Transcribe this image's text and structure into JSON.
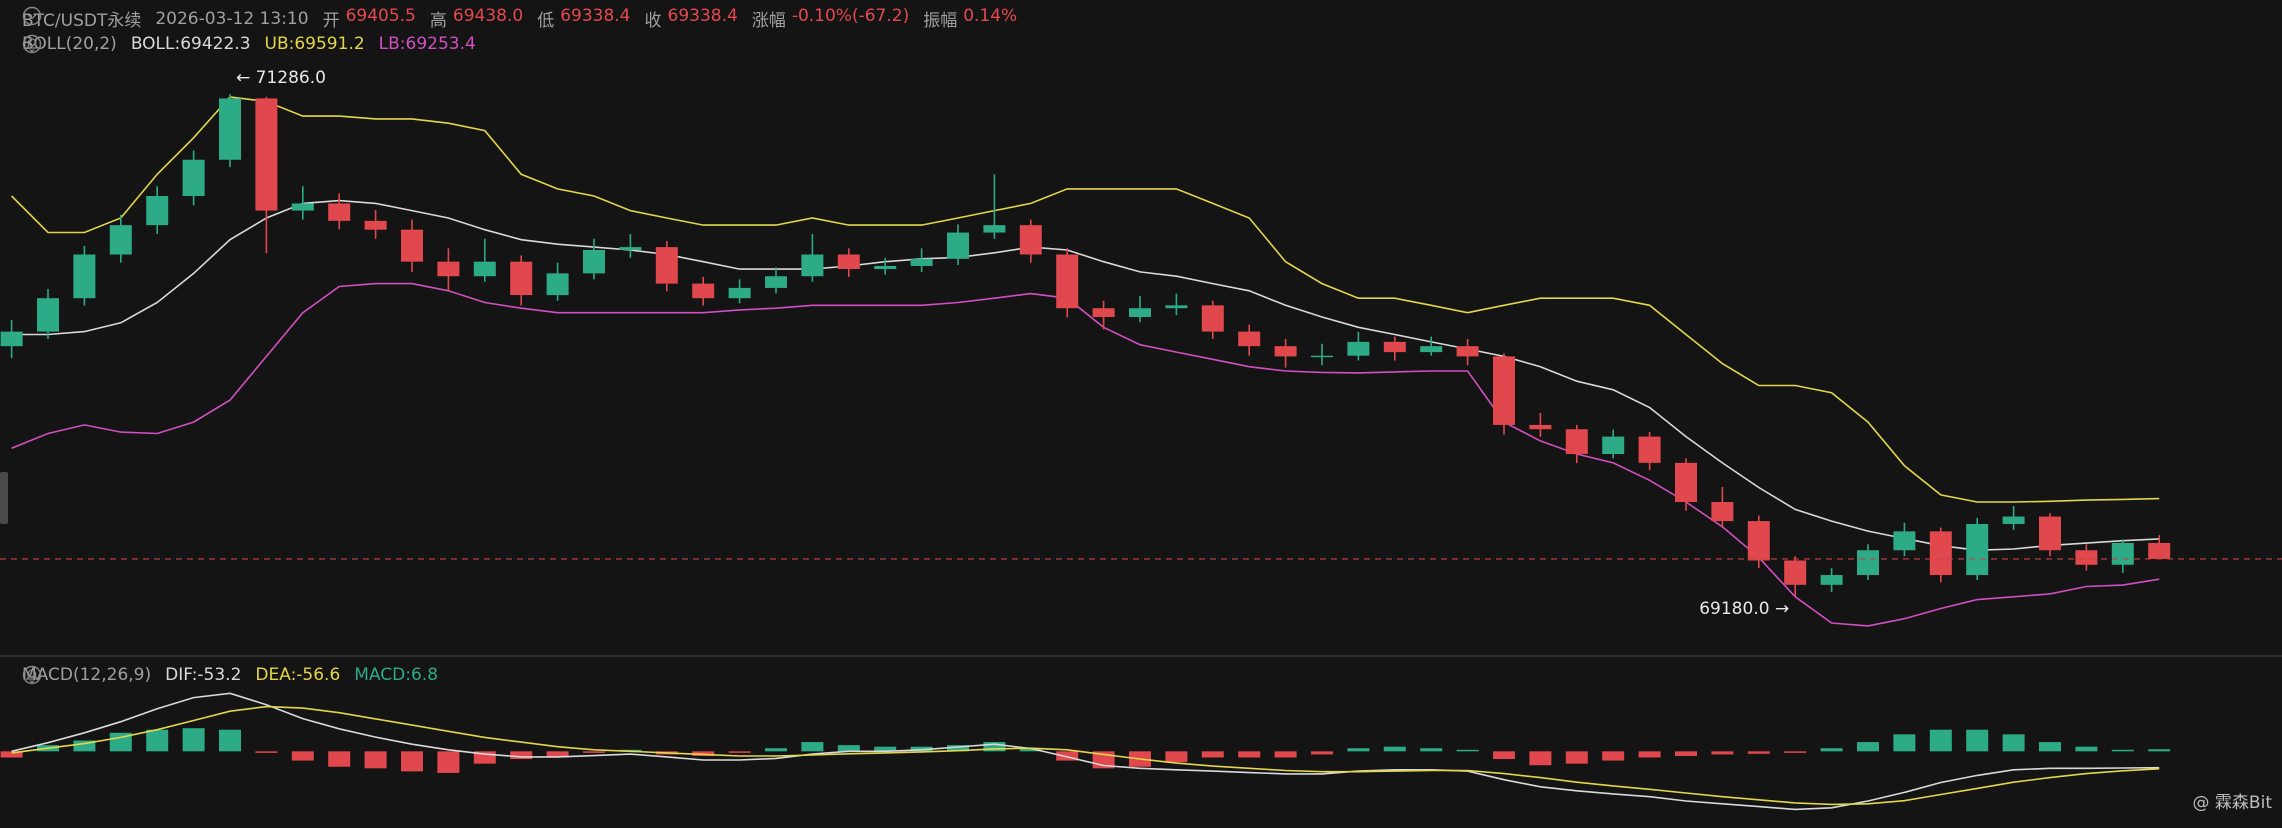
{
  "header": {
    "symbol": "BTC/USDT永续",
    "time": "2026-03-12 13:10",
    "fields": [
      {
        "label": "开",
        "value": "69405.5"
      },
      {
        "label": "高",
        "value": "69438.0"
      },
      {
        "label": "低",
        "value": "69338.4"
      },
      {
        "label": "收",
        "value": "69338.4"
      },
      {
        "label": "涨幅",
        "value": "-0.10%(-67.2)"
      },
      {
        "label": "振幅",
        "value": "0.14%"
      }
    ]
  },
  "watermark": "@ 霖森Bit",
  "chart_data": [
    {
      "type": "candlestick",
      "indicator": "BOLL(20,2)",
      "up_color": "#2dab86",
      "down_color": "#e0484d",
      "ylim": [
        68936,
        71408
      ],
      "open": [
        70230,
        70291,
        70431,
        70614,
        70737,
        70859,
        71011,
        71268,
        70798,
        70828,
        70755,
        70718,
        70584,
        70523,
        70584,
        70444,
        70535,
        70633,
        70645,
        70492,
        70431,
        70474,
        70523,
        70614,
        70553,
        70566,
        70596,
        70706,
        70737,
        70614,
        70389,
        70352,
        70389,
        70401,
        70291,
        70230,
        70187,
        70190,
        70248,
        70205,
        70230,
        70187,
        69900,
        69882,
        69778,
        69851,
        69741,
        69577,
        69497,
        69332,
        69230,
        69271,
        69375,
        69454,
        69271,
        69485,
        69516,
        69375,
        69314,
        69405.5
      ],
      "high": [
        70340,
        70470,
        70650,
        70780,
        70900,
        71050,
        71286,
        71275,
        70900,
        70870,
        70800,
        70760,
        70640,
        70680,
        70610,
        70580,
        70680,
        70700,
        70670,
        70520,
        70510,
        70560,
        70700,
        70640,
        70600,
        70640,
        70740,
        70950,
        70760,
        70640,
        70420,
        70440,
        70450,
        70420,
        70320,
        70260,
        70240,
        70290,
        70270,
        70270,
        70260,
        70200,
        69950,
        69900,
        69880,
        69870,
        69760,
        69640,
        69520,
        69350,
        69300,
        69400,
        69490,
        69470,
        69510,
        69560,
        69530,
        69400,
        69420,
        69438.0
      ],
      "low": [
        70180,
        70260,
        70400,
        70580,
        70700,
        70820,
        70980,
        70620,
        70760,
        70720,
        70680,
        70540,
        70460,
        70500,
        70400,
        70420,
        70510,
        70600,
        70460,
        70400,
        70410,
        70450,
        70500,
        70520,
        70530,
        70540,
        70570,
        70680,
        70580,
        70350,
        70300,
        70330,
        70360,
        70260,
        70190,
        70140,
        70150,
        70170,
        70170,
        70190,
        70150,
        69860,
        69850,
        69740,
        69760,
        69710,
        69540,
        69470,
        69300,
        69180,
        69200,
        69250,
        69350,
        69240,
        69250,
        69460,
        69350,
        69290,
        69280,
        69338.4
      ],
      "close": [
        70291,
        70431,
        70614,
        70737,
        70859,
        71011,
        71268,
        70798,
        70828,
        70755,
        70718,
        70584,
        70523,
        70584,
        70444,
        70535,
        70633,
        70645,
        70492,
        70431,
        70474,
        70523,
        70614,
        70553,
        70566,
        70596,
        70706,
        70737,
        70614,
        70389,
        70352,
        70389,
        70401,
        70291,
        70230,
        70187,
        70190,
        70248,
        70205,
        70230,
        70187,
        69900,
        69882,
        69778,
        69851,
        69741,
        69577,
        69497,
        69332,
        69230,
        69271,
        69375,
        69454,
        69271,
        69485,
        69516,
        69375,
        69314,
        69405.5,
        69338.4
      ],
      "series": [
        {
          "name": "BOLL:69422.3",
          "color": "#d9d9d9",
          "values": [
            70279,
            70279,
            70291,
            70328,
            70413,
            70535,
            70676,
            70767,
            70828,
            70840,
            70828,
            70798,
            70767,
            70718,
            70676,
            70657,
            70645,
            70633,
            70614,
            70584,
            70553,
            70553,
            70553,
            70566,
            70584,
            70596,
            70602,
            70621,
            70645,
            70633,
            70584,
            70541,
            70523,
            70492,
            70462,
            70401,
            70352,
            70309,
            70279,
            70248,
            70218,
            70187,
            70144,
            70083,
            70047,
            69973,
            69851,
            69741,
            69638,
            69546,
            69497,
            69455,
            69424,
            69394,
            69375,
            69380,
            69395,
            69405,
            69415,
            69422.3
          ]
        },
        {
          "name": "UB:69591.2",
          "color": "#e3d64a",
          "values": [
            70859,
            70706,
            70706,
            70767,
            70950,
            71103,
            71274,
            71255,
            71194,
            71194,
            71182,
            71182,
            71164,
            71133,
            70950,
            70889,
            70859,
            70798,
            70767,
            70737,
            70737,
            70737,
            70767,
            70737,
            70737,
            70737,
            70767,
            70798,
            70828,
            70889,
            70889,
            70889,
            70889,
            70828,
            70767,
            70584,
            70492,
            70431,
            70431,
            70401,
            70370,
            70401,
            70431,
            70431,
            70431,
            70401,
            70279,
            70157,
            70065,
            70065,
            70035,
            69912,
            69729,
            69607,
            69577,
            69577,
            69580,
            69585,
            69588,
            69591.2
          ]
        },
        {
          "name": "LB:69253.4",
          "color": "#d24fc1",
          "values": [
            69802,
            69864,
            69900,
            69870,
            69864,
            69912,
            70004,
            70187,
            70370,
            70480,
            70492,
            70492,
            70462,
            70413,
            70389,
            70370,
            70370,
            70370,
            70370,
            70370,
            70382,
            70389,
            70401,
            70401,
            70401,
            70401,
            70413,
            70431,
            70450,
            70431,
            70309,
            70236,
            70205,
            70175,
            70144,
            70126,
            70120,
            70118,
            70122,
            70126,
            70126,
            69912,
            69833,
            69778,
            69741,
            69668,
            69577,
            69473,
            69345,
            69180,
            69070,
            69058,
            69088,
            69131,
            69168,
            69180,
            69192,
            69223,
            69229,
            69253.4
          ]
        }
      ],
      "annotations": [
        "← 71286.0",
        "69180.0 →"
      ]
    },
    {
      "type": "macd",
      "indicator": "MACD(12,26,9)",
      "ylim": [
        -216,
        257
      ],
      "histogram": {
        "name": "MACD:6.8",
        "color": "#2dab86",
        "down_color": "#e0484d",
        "values": [
          -20,
          20,
          35,
          60,
          70,
          75,
          70,
          -5,
          -30,
          -50,
          -55,
          -65,
          -70,
          -40,
          -25,
          -20,
          -5,
          5,
          -10,
          -15,
          -5,
          10,
          30,
          20,
          15,
          15,
          20,
          30,
          10,
          -30,
          -55,
          -50,
          -35,
          -20,
          -20,
          -20,
          -10,
          10,
          15,
          10,
          5,
          -25,
          -45,
          -40,
          -30,
          -20,
          -15,
          -10,
          -8,
          -5,
          10,
          30,
          55,
          70,
          70,
          55,
          30,
          15,
          5,
          6.8
        ]
      },
      "series": [
        {
          "name": "DIF:-53.2",
          "color": "#d9d9d9",
          "values": [
            0,
            28,
            60,
            96,
            138,
            174,
            188,
            151,
            106,
            73,
            46,
            23,
            5,
            -9,
            -18,
            -18,
            -14,
            -9,
            -18,
            -28,
            -28,
            -23,
            -9,
            0,
            0,
            5,
            14,
            23,
            9,
            -18,
            -46,
            -55,
            -60,
            -64,
            -69,
            -73,
            -73,
            -64,
            -60,
            -60,
            -64,
            -92,
            -115,
            -128,
            -138,
            -147,
            -161,
            -170,
            -179,
            -188,
            -183,
            -161,
            -133,
            -101,
            -78,
            -60,
            -55,
            -55,
            -54,
            -53.2
          ]
        },
        {
          "name": "DEA:-56.6",
          "color": "#e3d64a",
          "values": [
            -5,
            10,
            25,
            45,
            70,
            100,
            130,
            145,
            140,
            125,
            105,
            85,
            65,
            45,
            30,
            15,
            5,
            0,
            -5,
            -10,
            -15,
            -15,
            -12,
            -8,
            -5,
            -2,
            2,
            8,
            10,
            5,
            -10,
            -25,
            -38,
            -48,
            -55,
            -62,
            -66,
            -66,
            -64,
            -62,
            -62,
            -72,
            -85,
            -100,
            -112,
            -123,
            -135,
            -147,
            -157,
            -167,
            -172,
            -170,
            -160,
            -140,
            -120,
            -100,
            -85,
            -72,
            -63,
            -56.6
          ]
        }
      ]
    }
  ]
}
